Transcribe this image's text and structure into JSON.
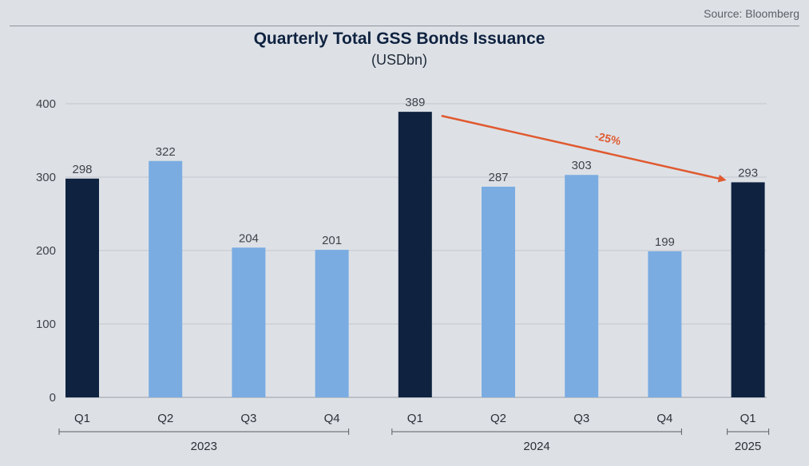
{
  "source": "Source: Bloomberg",
  "colors": {
    "dark": "#0f2240",
    "light": "#7aace2",
    "arrow": "#e05a30",
    "grid": "#c3c8ce"
  },
  "chart_data": {
    "type": "bar",
    "title": "Quarterly Total GSS Bonds Issuance",
    "subtitle": "(USDbn)",
    "categories": [
      "Q1",
      "Q2",
      "Q3",
      "Q4",
      "Q1",
      "Q2",
      "Q3",
      "Q4",
      "Q1"
    ],
    "values": [
      298,
      322,
      204,
      201,
      389,
      287,
      303,
      199,
      293
    ],
    "highlight": [
      true,
      false,
      false,
      false,
      true,
      false,
      false,
      false,
      true
    ],
    "groups": [
      {
        "label": "2023",
        "start": 0,
        "end": 3
      },
      {
        "label": "2024",
        "start": 4,
        "end": 7
      },
      {
        "label": "2025",
        "start": 8,
        "end": 8
      }
    ],
    "ylim": [
      0,
      400
    ],
    "yticks": [
      0,
      100,
      200,
      300,
      400
    ],
    "grid": true,
    "annotation": {
      "text": "-25%",
      "from_index": 4,
      "to_index": 8
    }
  }
}
